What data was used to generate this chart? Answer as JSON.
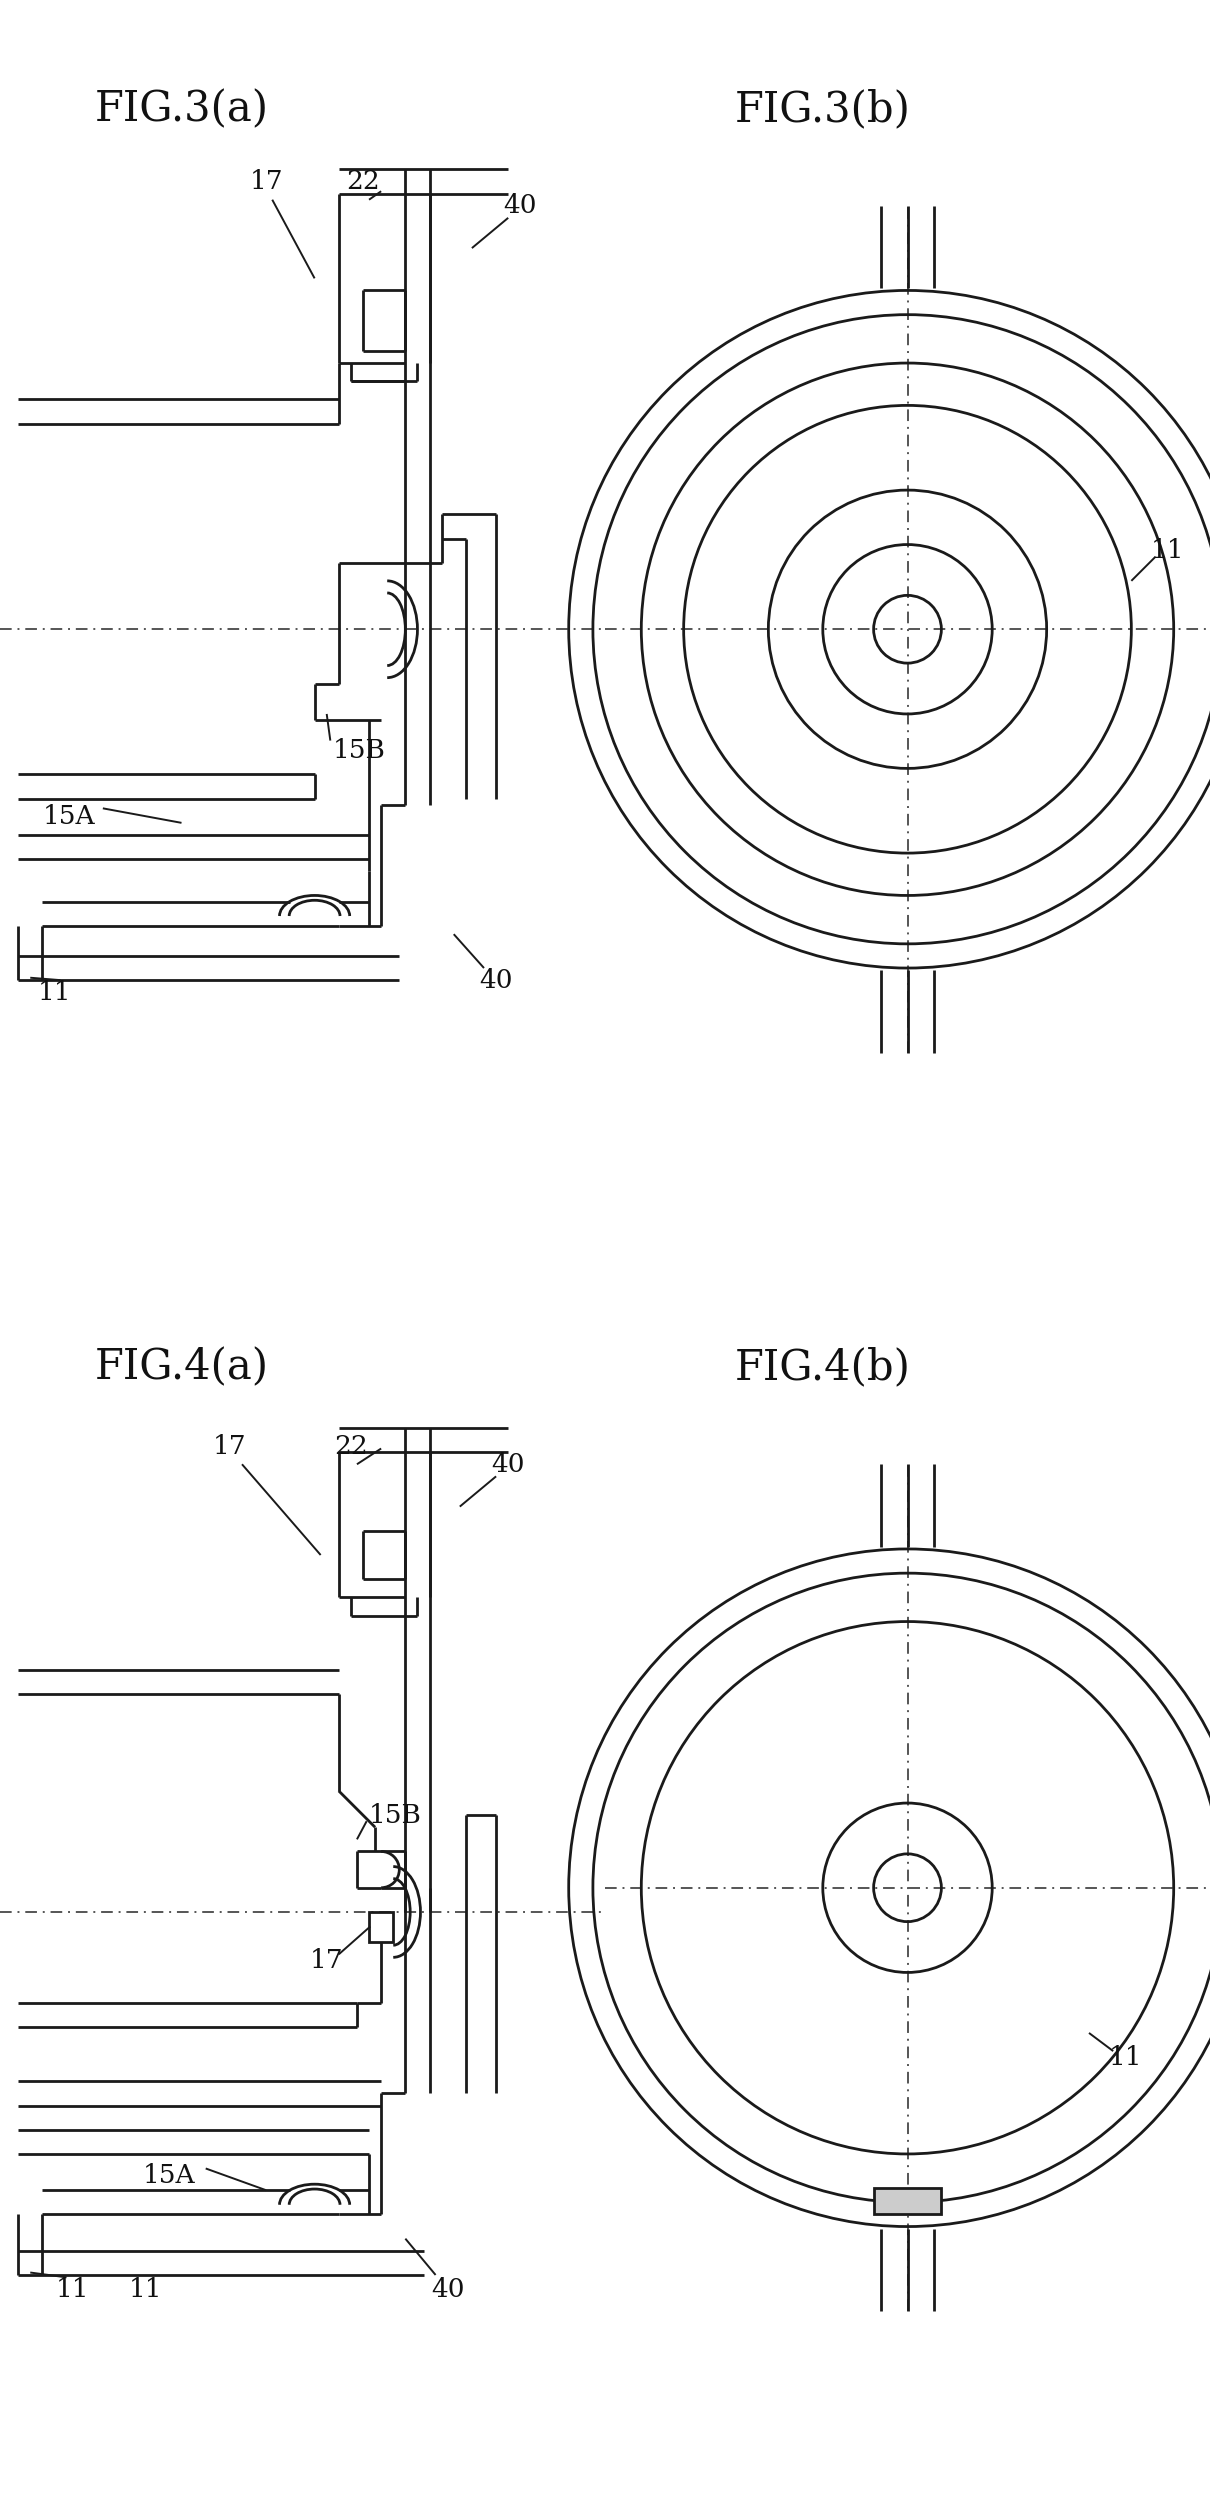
{
  "fig_width": 12.1,
  "fig_height": 25.17,
  "bg_color": "#ffffff",
  "line_color": "#1a1a1a",
  "label_color": "#111111",
  "title_fontsize": 30,
  "label_fontsize": 19,
  "lw": 2.0,
  "lw_thin": 1.4,
  "fig3a_title": "FIG.3(a)",
  "fig3b_title": "FIG.3(b)",
  "fig4a_title": "FIG.4(a)",
  "fig4b_title": "FIG.4(b)"
}
